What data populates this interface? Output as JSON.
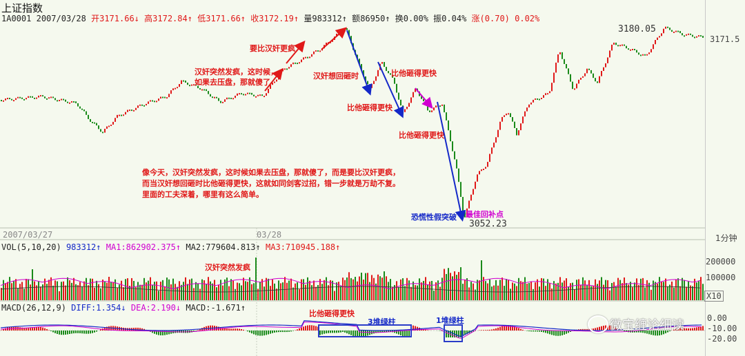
{
  "title": "上证指数",
  "quote": {
    "code": "1A0001",
    "date": "2007/03/28",
    "open_label": "开",
    "open": "3171.66",
    "open_arrow": "↓",
    "high_label": "高",
    "high": "3172.84",
    "high_arrow": "↑",
    "low_label": "低",
    "low": "3171.66",
    "low_arrow": "↑",
    "close_label": "收",
    "close": "3172.19",
    "close_arrow": "↑",
    "volume_label": "量",
    "volume": "983312",
    "volume_arrow": "↑",
    "amount_label": "额",
    "amount": "86950",
    "amount_arrow": "↑",
    "turnover_label": "换",
    "turnover": "0.00%",
    "amplitude_label": "振",
    "amplitude": "0.04%",
    "change_label": "涨",
    "change": "(0.70) 0.02%"
  },
  "price_chart": {
    "high_marker": "3180.05",
    "low_marker": "3052.23",
    "right_price": "3171.5",
    "date_left": "2007/03/27",
    "date_mid": "03/28",
    "period": "1分钟"
  },
  "annotations": {
    "a1": "要比汉奸更疯",
    "a2_line1": "汉奸突然发疯，这时候，",
    "a2_line2": "如果去压盘，那就傻了",
    "a3": "汉奸想回砸时",
    "a4": "比他砸得更快",
    "a5": "比他砸得更快",
    "a6": "比他砸得更快",
    "a7": "恐慌性假突破",
    "a8": "最佳回补点",
    "para1": "像今天，汉奸突然发疯，这时候如果去压盘，那就傻了，而是要比汉奸更疯，",
    "para2": "而当汉奸想回砸时比他砸得更快，这就如同剑客过招，错一步就是万劫不复。",
    "para3": "里面的工夫深着，哪里有这么简单。",
    "vol_note": "汉奸突然发疯",
    "macd_note1": "比他砸得更快",
    "macd_note2": "3堆绿柱",
    "macd_note3": "1堆绿柱"
  },
  "volume": {
    "label": "VOL(5,10,20)",
    "value": "983312",
    "value_arrow": "↑",
    "ma1": "MA1:862902.375",
    "ma1_arrow": "↑",
    "ma2": "MA2:779604.813",
    "ma2_arrow": "↑",
    "ma3": "MA3:710945.188",
    "ma3_arrow": "↑",
    "axis": [
      "200000",
      "100000"
    ],
    "unit": "X10"
  },
  "macd": {
    "label": "MACD(26,12,9)",
    "diff": "DIFF:1.354",
    "diff_arrow": "↓",
    "dea": "DEA:2.190",
    "dea_arrow": "↓",
    "macd": "MACD:-1.671",
    "macd_arrow": "↑",
    "axis": [
      "0.00",
      "-10.00",
      "-20.00"
    ]
  },
  "watermark": "微宝缠论细读",
  "colors": {
    "up": "#e01818",
    "down": "#1a8a1a",
    "diff": "#1428c8",
    "dea": "#d000d0",
    "bg": "#f5f9ee"
  }
}
